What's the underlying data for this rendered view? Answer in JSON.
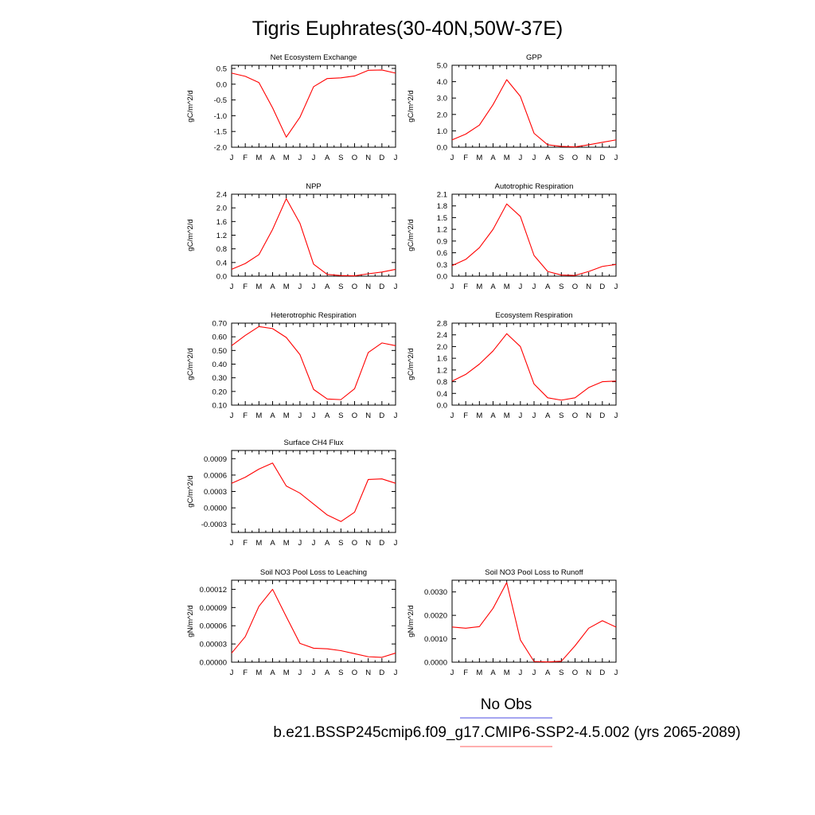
{
  "title": "Tigris Euphrates(30-40N,50W-37E)",
  "legend": {
    "obs_label": "No Obs",
    "obs_color": "#6f6fe8",
    "model_label": "b.e21.BSSP245cmip6.f09_g17.CMIP6-SSP2-4.5.002 (yrs 2065-2089)",
    "model_color": "#ff7f7f"
  },
  "line_color": "#ff0000",
  "months": [
    "J",
    "F",
    "M",
    "A",
    "M",
    "J",
    "J",
    "A",
    "S",
    "O",
    "N",
    "D",
    "J"
  ],
  "chart_data": [
    {
      "type": "line",
      "title": "Net Ecosystem Exchange",
      "ylabel": "gC/m^2/d",
      "ylim": [
        -2.0,
        0.6
      ],
      "yticks": [
        -2.0,
        -1.5,
        -1.0,
        -0.5,
        0.0,
        0.5
      ],
      "ytick_labels": [
        "-2.0",
        "-1.5",
        "-1.0",
        "-0.5",
        "0.0",
        "0.5"
      ],
      "values": [
        0.35,
        0.25,
        0.05,
        -0.75,
        -1.68,
        -1.05,
        -0.08,
        0.18,
        0.2,
        0.26,
        0.44,
        0.45,
        0.35
      ]
    },
    {
      "type": "line",
      "title": "GPP",
      "ylabel": "gC/m^2/d",
      "ylim": [
        0.0,
        5.0
      ],
      "yticks": [
        0.0,
        1.0,
        2.0,
        3.0,
        4.0,
        5.0
      ],
      "ytick_labels": [
        "0.0",
        "1.0",
        "2.0",
        "3.0",
        "4.0",
        "5.0"
      ],
      "values": [
        0.45,
        0.8,
        1.35,
        2.6,
        4.12,
        3.1,
        0.85,
        0.15,
        0.05,
        0.02,
        0.15,
        0.3,
        0.45
      ]
    },
    {
      "type": "line",
      "title": "NPP",
      "ylabel": "gC/m^2/d",
      "ylim": [
        0.0,
        2.4
      ],
      "yticks": [
        0.0,
        0.4,
        0.8,
        1.2,
        1.6,
        2.0,
        2.4
      ],
      "ytick_labels": [
        "0.0",
        "0.4",
        "0.8",
        "1.2",
        "1.6",
        "2.0",
        "2.4"
      ],
      "values": [
        0.2,
        0.37,
        0.63,
        1.37,
        2.27,
        1.55,
        0.35,
        0.05,
        0.02,
        0.01,
        0.07,
        0.12,
        0.2
      ]
    },
    {
      "type": "line",
      "title": "Autotrophic Respiration",
      "ylabel": "gC/m^2/d",
      "ylim": [
        0.0,
        2.1
      ],
      "yticks": [
        0.0,
        0.3,
        0.6,
        0.9,
        1.2,
        1.5,
        1.8,
        2.1
      ],
      "ytick_labels": [
        "0.0",
        "0.3",
        "0.6",
        "0.9",
        "1.2",
        "1.5",
        "1.8",
        "2.1"
      ],
      "values": [
        0.27,
        0.43,
        0.73,
        1.2,
        1.85,
        1.53,
        0.53,
        0.12,
        0.03,
        0.02,
        0.12,
        0.25,
        0.3
      ]
    },
    {
      "type": "line",
      "title": "Heterotrophic Respiration",
      "ylabel": "gC/m^2/d",
      "ylim": [
        0.1,
        0.7
      ],
      "yticks": [
        0.1,
        0.2,
        0.3,
        0.4,
        0.5,
        0.6,
        0.7
      ],
      "ytick_labels": [
        "0.10",
        "0.20",
        "0.30",
        "0.40",
        "0.50",
        "0.60",
        "0.70"
      ],
      "values": [
        0.535,
        0.61,
        0.675,
        0.66,
        0.595,
        0.47,
        0.215,
        0.145,
        0.14,
        0.22,
        0.485,
        0.555,
        0.535
      ]
    },
    {
      "type": "line",
      "title": "Ecosystem Respiration",
      "ylabel": "gC/m^2/d",
      "ylim": [
        0.0,
        2.8
      ],
      "yticks": [
        0.0,
        0.4,
        0.8,
        1.2,
        1.6,
        2.0,
        2.4,
        2.8
      ],
      "ytick_labels": [
        "0.0",
        "0.4",
        "0.8",
        "1.2",
        "1.6",
        "2.0",
        "2.4",
        "2.8"
      ],
      "values": [
        0.82,
        1.05,
        1.4,
        1.85,
        2.44,
        2.0,
        0.72,
        0.25,
        0.17,
        0.25,
        0.6,
        0.8,
        0.82
      ]
    },
    {
      "type": "line",
      "title": "Surface CH4 Flux",
      "ylabel": "gC/m^2/d",
      "ylim": [
        -0.00045,
        0.00105
      ],
      "yticks": [
        -0.0003,
        0.0,
        0.0003,
        0.0006,
        0.0009
      ],
      "ytick_labels": [
        "-0.0003",
        "0.0000",
        "0.0003",
        "0.0006",
        "0.0009"
      ],
      "values": [
        0.00045,
        0.00056,
        0.00071,
        0.00082,
        0.0004,
        0.00027,
        7e-05,
        -0.00013,
        -0.00025,
        -8e-05,
        0.00052,
        0.00053,
        0.00045
      ]
    },
    {
      "type": "line",
      "title": "Soil NO3 Pool Loss to Leaching",
      "ylabel": "gN/m^2/d",
      "ylim": [
        0.0,
        0.000135
      ],
      "yticks": [
        0.0,
        3e-05,
        6e-05,
        9e-05,
        0.00012
      ],
      "ytick_labels": [
        "0.00000",
        "0.00003",
        "0.00006",
        "0.00009",
        "0.00012"
      ],
      "values": [
        1.5e-05,
        4.2e-05,
        9.2e-05,
        0.00012,
        7.5e-05,
        3.1e-05,
        2.3e-05,
        2.2e-05,
        1.9e-05,
        1.4e-05,
        9e-06,
        8e-06,
        1.5e-05
      ]
    },
    {
      "type": "line",
      "title": "Soil NO3 Pool Loss to Runoff",
      "ylabel": "gN/m^2/d",
      "ylim": [
        0.0,
        0.0035
      ],
      "yticks": [
        0.0,
        0.001,
        0.002,
        0.003
      ],
      "ytick_labels": [
        "0.0000",
        "0.0010",
        "0.0020",
        "0.0030"
      ],
      "values": [
        0.0015,
        0.00145,
        0.00152,
        0.0023,
        0.0034,
        0.00095,
        3e-05,
        1e-05,
        4e-05,
        0.0007,
        0.00145,
        0.00177,
        0.0015
      ]
    }
  ]
}
